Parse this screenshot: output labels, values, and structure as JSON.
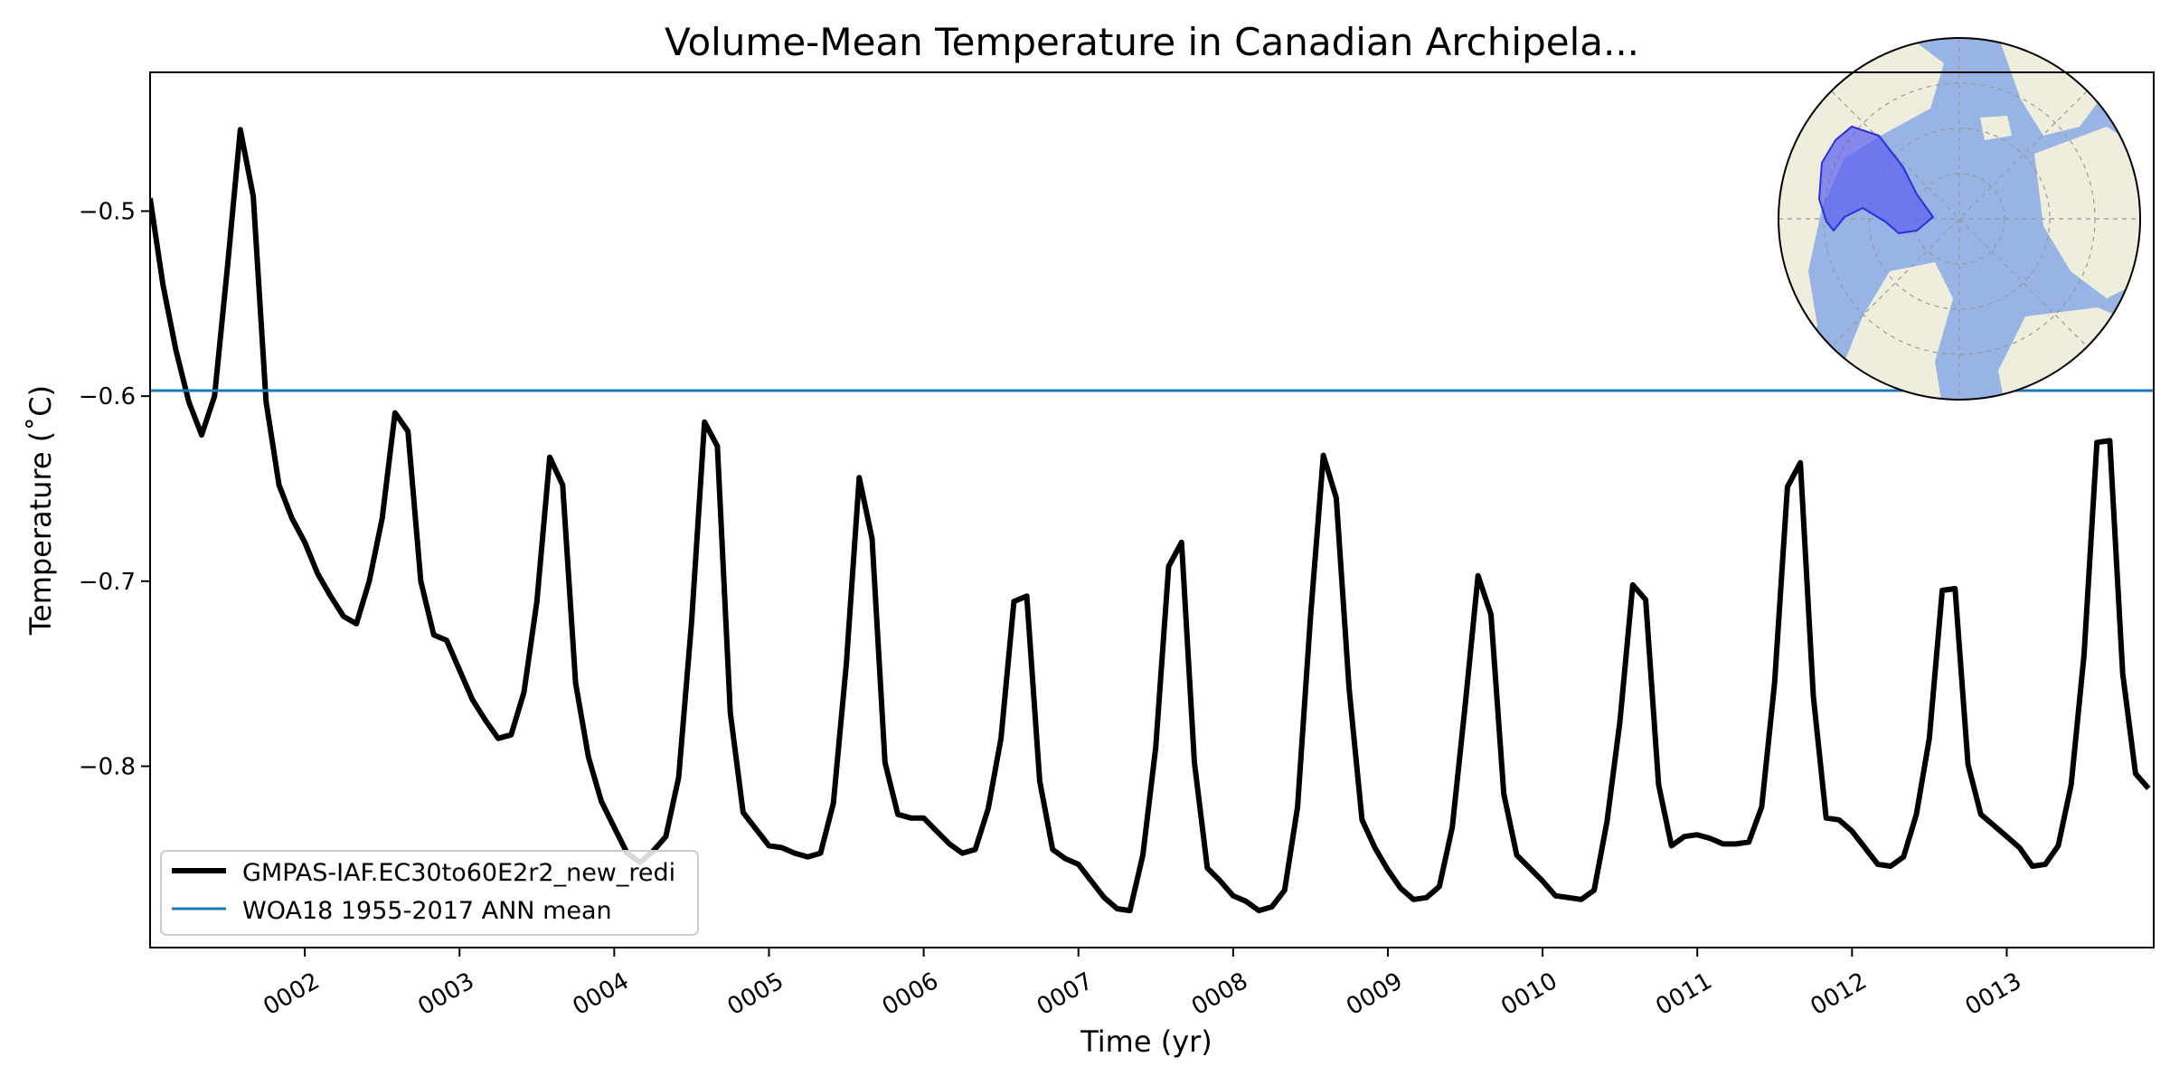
{
  "chart_data": {
    "type": "line",
    "title": "Volume-Mean Temperature in Canadian Archipela...",
    "xlabel": "Time (yr)",
    "ylabel": "Temperature (˚C)",
    "xlim": [
      1.0,
      13.95
    ],
    "ylim": [
      -0.898,
      -0.425
    ],
    "x_ticks": [
      2,
      3,
      4,
      5,
      6,
      7,
      8,
      9,
      10,
      11,
      12,
      13
    ],
    "x_tick_labels": [
      "0002",
      "0003",
      "0004",
      "0005",
      "0006",
      "0007",
      "0008",
      "0009",
      "0010",
      "0011",
      "0012",
      "0013"
    ],
    "y_ticks": [
      -0.5,
      -0.6,
      -0.7,
      -0.8
    ],
    "y_tick_labels": [
      "−0.5",
      "−0.6",
      "−0.7",
      "−0.8"
    ],
    "grid": false,
    "legend_position": "lower-left",
    "series": [
      {
        "name": "GMPAS-IAF.EC30to60E2r2_new_redi",
        "color": "#000000",
        "x_start": 1.0,
        "x_step": 0.08333,
        "values": [
          -0.493,
          -0.54,
          -0.575,
          -0.603,
          -0.621,
          -0.6,
          -0.53,
          -0.456,
          -0.492,
          -0.603,
          -0.648,
          -0.666,
          -0.679,
          -0.696,
          -0.708,
          -0.719,
          -0.723,
          -0.7,
          -0.666,
          -0.609,
          -0.619,
          -0.7,
          -0.729,
          -0.732,
          -0.748,
          -0.764,
          -0.775,
          -0.785,
          -0.783,
          -0.76,
          -0.711,
          -0.633,
          -0.648,
          -0.755,
          -0.795,
          -0.819,
          -0.833,
          -0.847,
          -0.852,
          -0.846,
          -0.838,
          -0.806,
          -0.722,
          -0.614,
          -0.627,
          -0.771,
          -0.825,
          -0.834,
          -0.843,
          -0.844,
          -0.847,
          -0.849,
          -0.847,
          -0.82,
          -0.745,
          -0.644,
          -0.677,
          -0.798,
          -0.826,
          -0.828,
          -0.828,
          -0.835,
          -0.842,
          -0.847,
          -0.845,
          -0.823,
          -0.785,
          -0.711,
          -0.708,
          -0.808,
          -0.845,
          -0.85,
          -0.853,
          -0.862,
          -0.871,
          -0.877,
          -0.878,
          -0.848,
          -0.79,
          -0.692,
          -0.679,
          -0.798,
          -0.855,
          -0.862,
          -0.87,
          -0.873,
          -0.878,
          -0.876,
          -0.867,
          -0.822,
          -0.72,
          -0.632,
          -0.655,
          -0.758,
          -0.829,
          -0.844,
          -0.856,
          -0.866,
          -0.872,
          -0.871,
          -0.865,
          -0.833,
          -0.767,
          -0.697,
          -0.718,
          -0.815,
          -0.848,
          -0.855,
          -0.862,
          -0.87,
          -0.871,
          -0.872,
          -0.867,
          -0.83,
          -0.776,
          -0.702,
          -0.71,
          -0.81,
          -0.843,
          -0.838,
          -0.837,
          -0.839,
          -0.842,
          -0.842,
          -0.841,
          -0.822,
          -0.755,
          -0.649,
          -0.636,
          -0.762,
          -0.828,
          -0.829,
          -0.835,
          -0.844,
          -0.853,
          -0.854,
          -0.849,
          -0.826,
          -0.785,
          -0.705,
          -0.704,
          -0.799,
          -0.826,
          -0.832,
          -0.838,
          -0.844,
          -0.854,
          -0.853,
          -0.843,
          -0.81,
          -0.74,
          -0.625,
          -0.624,
          -0.75,
          -0.804,
          -0.812
        ]
      },
      {
        "name": "WOA18 1955-2017 ANN mean",
        "color": "#1f77b4",
        "constant": -0.597
      }
    ],
    "inset_map": {
      "projection": "north-polar-stereographic",
      "region": "Canadian Archipelago",
      "ocean_color": "#98b4e4",
      "land_color": "#efeedc",
      "region_fill": "#5a5ef0",
      "region_stroke": "#2a2fe0"
    }
  }
}
